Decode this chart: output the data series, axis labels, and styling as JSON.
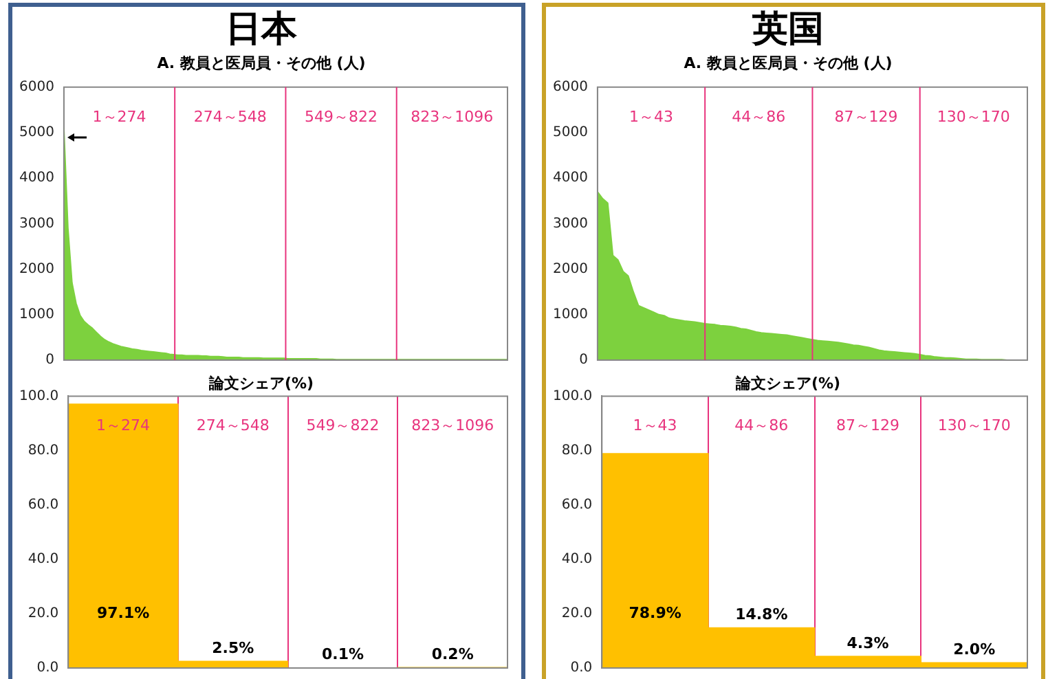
{
  "chart_data": [
    {
      "type": "area",
      "title": "日本",
      "subtitle": "A. 教員と医局員・その他 (人)",
      "color": "#7dd13e",
      "categories": [
        null,
        null,
        null,
        null,
        null,
        null,
        null,
        null,
        null,
        null,
        null,
        null,
        null,
        null,
        null,
        null,
        null,
        null,
        null,
        null,
        null,
        null,
        null,
        null,
        null,
        null,
        null,
        null,
        null,
        null,
        null,
        null,
        null,
        null,
        null,
        null,
        null,
        null,
        null,
        null,
        null,
        null,
        null,
        null,
        null,
        null,
        null,
        null,
        null,
        null,
        null,
        null,
        null,
        null,
        null,
        null,
        null,
        null,
        null,
        null,
        null,
        null,
        null,
        null,
        null,
        null,
        null,
        null,
        null,
        null,
        null,
        null,
        null,
        null,
        null,
        null,
        null,
        null,
        null,
        null,
        null,
        null,
        null,
        null,
        null,
        null,
        null,
        null,
        null,
        null,
        null,
        null,
        null,
        null,
        null,
        null,
        null,
        null,
        null,
        null,
        null,
        null,
        null,
        null,
        null,
        null,
        null,
        null,
        null,
        null
      ],
      "values": [
        5100,
        2900,
        1700,
        1250,
        980,
        850,
        770,
        700,
        610,
        520,
        450,
        400,
        360,
        330,
        300,
        280,
        260,
        240,
        230,
        210,
        200,
        190,
        180,
        170,
        160,
        150,
        130,
        120,
        110,
        110,
        100,
        100,
        100,
        100,
        90,
        90,
        80,
        80,
        80,
        70,
        60,
        60,
        60,
        60,
        50,
        50,
        50,
        50,
        50,
        40,
        40,
        40,
        40,
        40,
        40,
        30,
        30,
        30,
        30,
        30,
        30,
        30,
        30,
        20,
        20,
        20,
        20,
        10,
        10,
        10,
        10,
        10,
        10,
        10,
        10,
        10,
        10,
        10,
        10,
        10,
        10,
        10,
        10,
        10,
        10,
        10,
        10,
        10,
        10,
        10,
        10,
        10,
        10,
        10,
        10,
        10,
        10,
        10,
        10,
        10,
        10,
        10,
        10,
        10,
        10,
        10,
        10,
        10,
        10,
        10
      ],
      "ylim": [
        0,
        6000
      ],
      "yticks": [
        0,
        1000,
        2000,
        3000,
        4000,
        5000,
        6000
      ],
      "tick_labels": "y",
      "grid": "x",
      "annotations": [
        "1～274",
        "274～548",
        "549～822",
        "823～1096"
      ]
    },
    {
      "type": "bar",
      "title": "論文シェア(%)",
      "categories": [
        "1～274",
        "274～548",
        "549～822",
        "823～1096"
      ],
      "values": [
        97.1,
        2.5,
        0.1,
        0.2
      ],
      "value_labels": [
        "97.1%",
        "2.5%",
        "0.1%",
        "0.2%"
      ],
      "color": "#ffc000",
      "ylim": [
        0,
        100
      ],
      "yticks": [
        {
          "value": 0,
          "label": "0.0"
        },
        {
          "value": 20,
          "label": "20.0"
        },
        {
          "value": 40,
          "label": "40.0"
        },
        {
          "value": 60,
          "label": "60.0"
        },
        {
          "value": 80,
          "label": "80.0"
        },
        {
          "value": 100,
          "label": "100.0"
        }
      ],
      "grid": "x"
    },
    {
      "type": "area",
      "title": "英国",
      "subtitle": "A. 教員と医局員・その他 (人)",
      "color": "#7dd13e",
      "categories": [
        null,
        null,
        null,
        null,
        null,
        null,
        null,
        null,
        null,
        null,
        null,
        null,
        null,
        null,
        null,
        null,
        null,
        null,
        null,
        null,
        null,
        null,
        null,
        null,
        null,
        null,
        null,
        null,
        null,
        null,
        null,
        null,
        null,
        null,
        null,
        null,
        null,
        null,
        null,
        null,
        null,
        null,
        null,
        null,
        null,
        null,
        null,
        null,
        null,
        null,
        null,
        null,
        null,
        null,
        null,
        null,
        null,
        null,
        null,
        null,
        null,
        null,
        null,
        null,
        null,
        null,
        null,
        null,
        null,
        null,
        null,
        null,
        null,
        null,
        null,
        null,
        null,
        null,
        null,
        null,
        null,
        null,
        null,
        null,
        null
      ],
      "values": [
        3700,
        3550,
        3450,
        2300,
        2200,
        1950,
        1850,
        1500,
        1200,
        1150,
        1100,
        1050,
        1000,
        980,
        920,
        900,
        880,
        860,
        850,
        840,
        820,
        800,
        790,
        780,
        760,
        750,
        740,
        720,
        690,
        680,
        650,
        620,
        600,
        590,
        580,
        570,
        560,
        550,
        530,
        510,
        490,
        470,
        450,
        430,
        420,
        410,
        400,
        390,
        370,
        350,
        330,
        320,
        300,
        280,
        250,
        220,
        200,
        190,
        180,
        170,
        160,
        150,
        140,
        120,
        100,
        90,
        70,
        60,
        50,
        50,
        40,
        30,
        20,
        20,
        20,
        10,
        10,
        10,
        10,
        10,
        0,
        0,
        0,
        0,
        0
      ],
      "ylim": [
        0,
        6000
      ],
      "yticks": [
        0,
        1000,
        2000,
        3000,
        4000,
        5000,
        6000
      ],
      "tick_labels": "y",
      "grid": "x",
      "annotations": [
        "1～43",
        "44～86",
        "87～129",
        "130～170"
      ]
    },
    {
      "type": "bar",
      "title": "論文シェア(%)",
      "categories": [
        "1～43",
        "44～86",
        "87～129",
        "130～170"
      ],
      "values": [
        78.9,
        14.8,
        4.3,
        2.0
      ],
      "value_labels": [
        "78.9%",
        "14.8%",
        "4.3%",
        "2.0%"
      ],
      "color": "#ffc000",
      "ylim": [
        0,
        100
      ],
      "yticks": [
        {
          "value": 0,
          "label": "0.0"
        },
        {
          "value": 20,
          "label": "20.0"
        },
        {
          "value": 40,
          "label": "40.0"
        },
        {
          "value": 60,
          "label": "60.0"
        },
        {
          "value": 80,
          "label": "80.0"
        },
        {
          "value": 100,
          "label": "100.0"
        }
      ],
      "grid": "x"
    }
  ]
}
